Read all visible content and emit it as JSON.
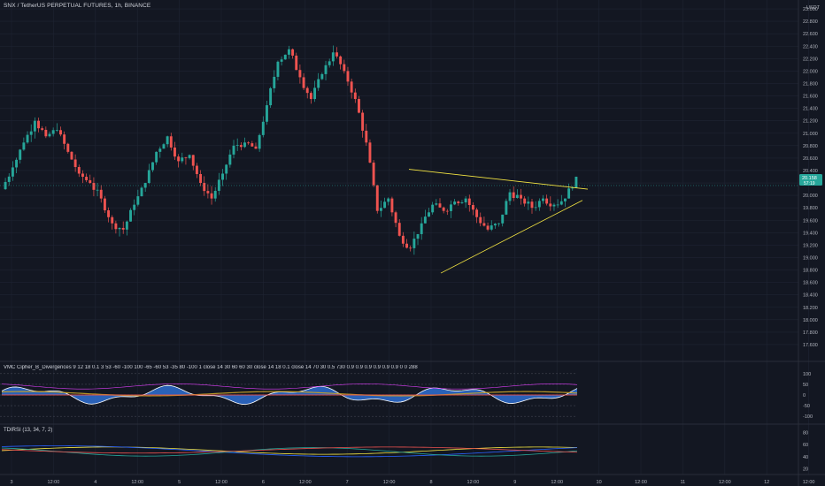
{
  "header": {
    "symbol_line": "SNX / TetherUS PERPETUAL FUTURES, 1h, BINANCE"
  },
  "price_axis": {
    "currency": "USDT"
  },
  "price_badge": {
    "value": "20.158",
    "countdown": "57:19",
    "color": "#26a69a"
  },
  "indicators": {
    "panel1_label": "VMC Cipher_B_Divergences 9 12 18 0.1 3 53 -60 -100 100 -65 -60 53 -35 80 -100 1 close 14 30 60 60 30 close 14 18 0.1 close 14 70 30 0.5 730 0.9 0.9 0.9 0.9 0.9 0.9 0 0 288",
    "panel2_label": "TDIRSI (13, 34, 7, 2)"
  },
  "colors": {
    "background": "#131722",
    "up": "#26a69a",
    "down": "#ef5350",
    "trendline": "#f4e542",
    "grid": "#1f2433"
  },
  "chart_data": [
    {
      "type": "candlestick",
      "title": "SNX / TetherUS PERPETUAL FUTURES, 1h, BINANCE",
      "y_axis": {
        "ylim": [
          17.5,
          23.1
        ],
        "ticks": [
          "23.000",
          "22.800",
          "22.600",
          "22.400",
          "22.200",
          "22.000",
          "21.800",
          "21.600",
          "21.400",
          "21.200",
          "21.000",
          "20.800",
          "20.600",
          "20.400",
          "20.200",
          "20.000",
          "19.800",
          "19.600",
          "19.400",
          "19.200",
          "19.000",
          "18.800",
          "18.600",
          "18.400",
          "18.200",
          "18.000",
          "17.800",
          "17.600"
        ]
      },
      "x_axis": {
        "labels": [
          "3",
          "12:00",
          "4",
          "12:00",
          "5",
          "12:00",
          "6",
          "12:00",
          "7",
          "12:00",
          "8",
          "12:00",
          "9",
          "12:00",
          "10",
          "12:00",
          "11",
          "12:00",
          "12",
          "12:00",
          "13"
        ]
      },
      "series": [
        {
          "ohlc_approx": [
            [
              20.1,
              20.55,
              19.95,
              20.45
            ],
            [
              20.45,
              21.0,
              20.3,
              20.85
            ],
            [
              20.85,
              21.35,
              20.7,
              21.2
            ],
            [
              21.2,
              21.55,
              20.85,
              20.95
            ],
            [
              20.95,
              21.3,
              20.7,
              21.05
            ],
            [
              21.05,
              21.15,
              20.65,
              20.7
            ],
            [
              20.7,
              20.9,
              20.25,
              20.35
            ],
            [
              20.35,
              20.5,
              20.1,
              20.2
            ],
            [
              20.2,
              20.35,
              19.85,
              19.95
            ],
            [
              19.95,
              20.1,
              19.45,
              19.55
            ],
            [
              19.55,
              19.8,
              19.15,
              19.45
            ],
            [
              19.45,
              19.95,
              19.3,
              19.85
            ],
            [
              19.85,
              20.3,
              19.75,
              20.2
            ],
            [
              20.2,
              20.8,
              20.1,
              20.7
            ],
            [
              20.7,
              21.1,
              20.55,
              20.95
            ],
            [
              20.95,
              21.05,
              20.45,
              20.55
            ],
            [
              20.55,
              20.75,
              20.3,
              20.65
            ],
            [
              20.65,
              20.7,
              20.1,
              20.2
            ],
            [
              20.2,
              20.35,
              19.85,
              19.95
            ],
            [
              19.95,
              20.45,
              19.9,
              20.35
            ],
            [
              20.35,
              20.9,
              20.25,
              20.8
            ],
            [
              20.8,
              21.0,
              20.6,
              20.85
            ],
            [
              20.85,
              21.05,
              20.7,
              20.75
            ],
            [
              20.75,
              21.6,
              20.7,
              21.45
            ],
            [
              21.45,
              22.3,
              21.4,
              22.15
            ],
            [
              22.15,
              22.5,
              21.9,
              22.35
            ],
            [
              22.35,
              22.5,
              21.75,
              21.9
            ],
            [
              21.9,
              22.1,
              21.4,
              21.55
            ],
            [
              21.55,
              22.05,
              21.5,
              21.95
            ],
            [
              21.95,
              22.45,
              21.85,
              22.3
            ],
            [
              22.3,
              22.4,
              21.85,
              22.0
            ],
            [
              22.0,
              22.15,
              21.4,
              21.55
            ],
            [
              21.55,
              21.6,
              20.7,
              20.85
            ],
            [
              20.85,
              20.9,
              19.6,
              19.75
            ],
            [
              19.75,
              20.15,
              19.45,
              19.95
            ],
            [
              19.95,
              20.0,
              19.2,
              19.35
            ],
            [
              19.35,
              19.65,
              18.7,
              19.15
            ],
            [
              19.15,
              19.65,
              19.0,
              19.55
            ],
            [
              19.55,
              19.95,
              19.45,
              19.85
            ],
            [
              19.85,
              20.05,
              19.7,
              19.75
            ],
            [
              19.75,
              20.0,
              19.6,
              19.9
            ],
            [
              19.9,
              20.1,
              19.8,
              19.95
            ],
            [
              19.95,
              20.05,
              19.55,
              19.65
            ],
            [
              19.65,
              19.8,
              19.4,
              19.45
            ],
            [
              19.45,
              19.7,
              19.1,
              19.55
            ],
            [
              19.55,
              20.15,
              19.5,
              20.05
            ],
            [
              20.05,
              20.2,
              19.85,
              19.95
            ],
            [
              19.95,
              20.1,
              19.7,
              19.8
            ],
            [
              19.8,
              20.05,
              19.75,
              19.95
            ],
            [
              19.95,
              20.15,
              19.75,
              19.85
            ],
            [
              19.85,
              20.05,
              19.8,
              19.95
            ],
            [
              19.95,
              20.4,
              19.9,
              20.3
            ]
          ]
        }
      ],
      "annotations": [
        {
          "type": "trendline",
          "from": [
            "Aug 7 ~23:00",
            20.42
          ],
          "to": [
            "Aug 9 ~19:00",
            20.1
          ]
        },
        {
          "type": "trendline",
          "from": [
            "Aug 8 ~04:00",
            18.75
          ],
          "to": [
            "Aug 9 ~19:00",
            19.92
          ]
        }
      ],
      "last_price": 20.158
    },
    {
      "type": "line",
      "title": "VMC Cipher_B_Divergences",
      "ylim": [
        -120,
        120
      ],
      "y_ticks": [
        "100",
        "50",
        "0",
        "-50",
        "-100"
      ]
    },
    {
      "type": "line",
      "title": "TDIRSI (13, 34, 7, 2)",
      "ylim": [
        15,
        85
      ],
      "y_ticks": [
        "80",
        "60",
        "40",
        "20"
      ]
    }
  ]
}
